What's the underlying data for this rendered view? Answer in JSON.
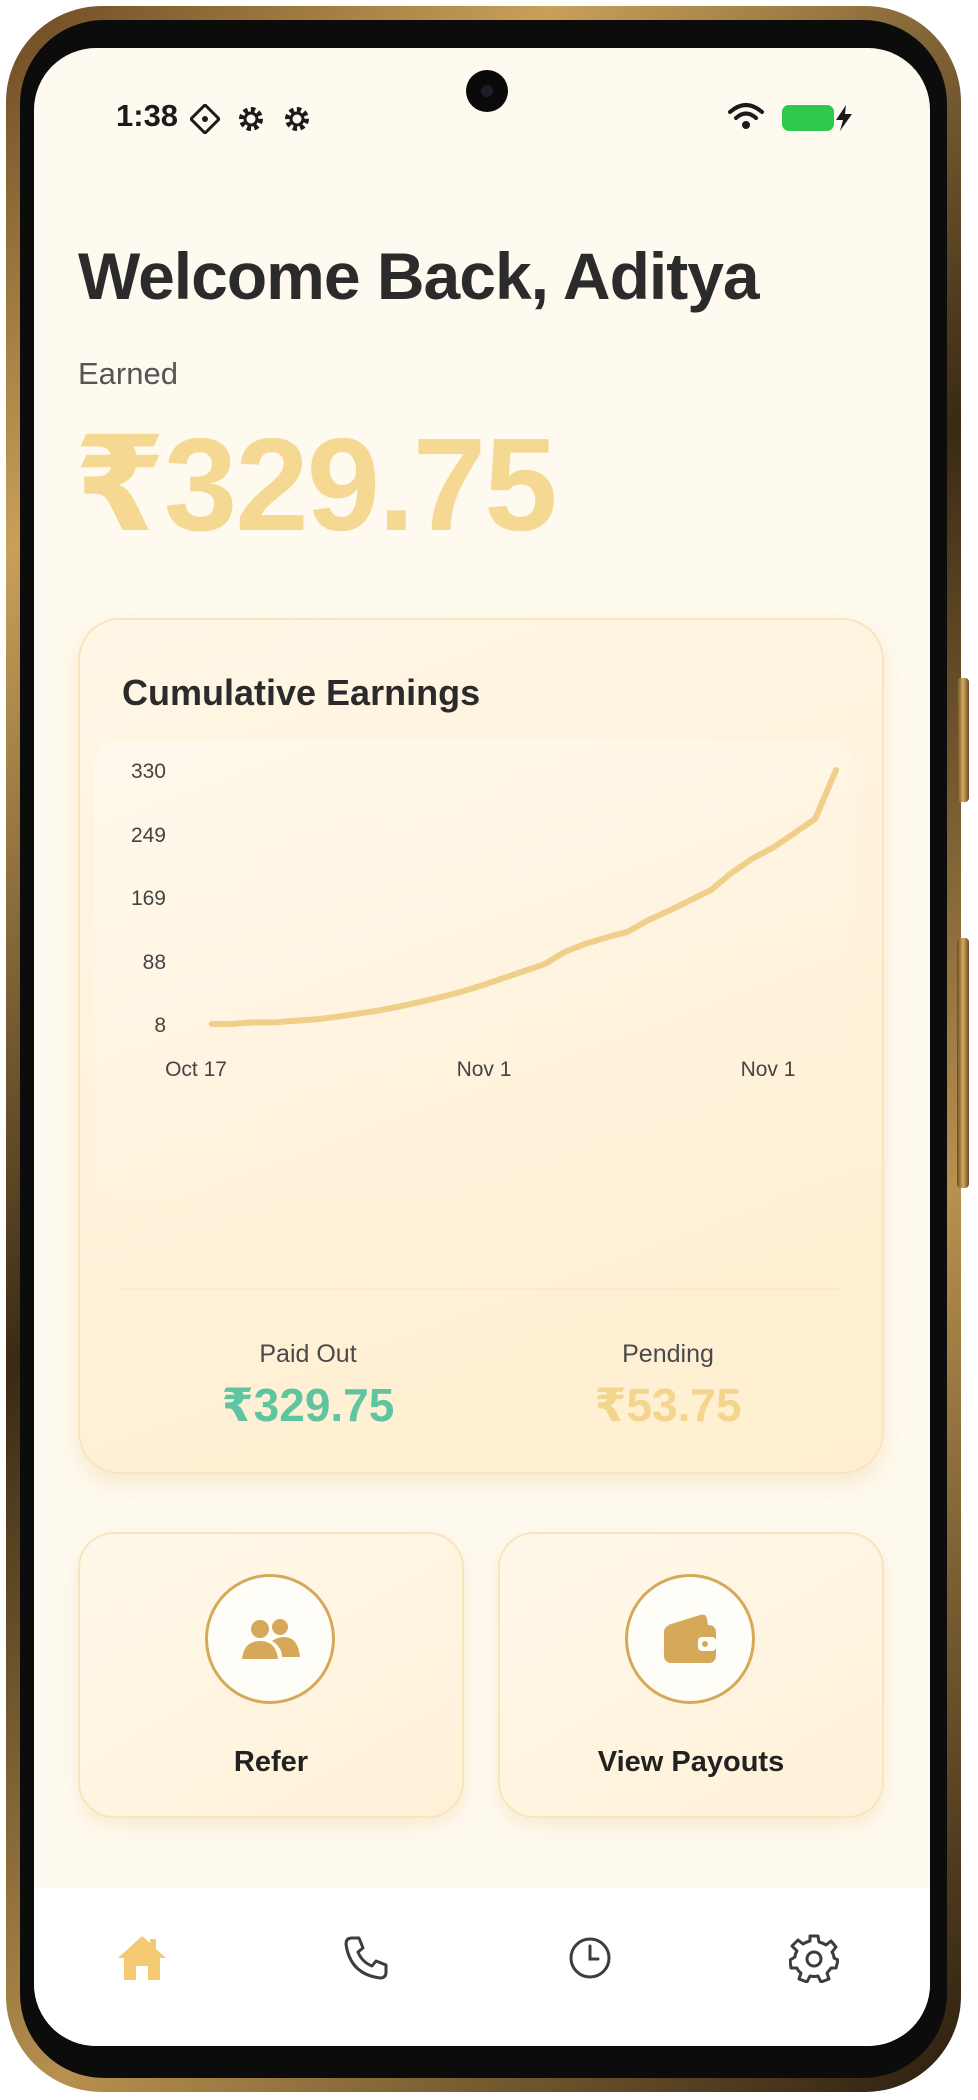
{
  "status_bar": {
    "time": "1:38",
    "icons": [
      "data-saver-icon",
      "gear-icon",
      "gear-icon",
      "wifi-icon",
      "battery-icon",
      "charging-bolt-icon"
    ]
  },
  "welcome": {
    "title": "Welcome Back, Aditya"
  },
  "earnings": {
    "label": "Earned",
    "amount": "₹329.75"
  },
  "cumulative_card": {
    "title": "Cumulative Earnings",
    "paid_out_label": "Paid Out",
    "paid_out_value": "₹329.75",
    "pending_label": "Pending",
    "pending_value": "₹53.75"
  },
  "chart_data": {
    "type": "line",
    "title": "Cumulative Earnings",
    "y_ticks": [
      "330",
      "249",
      "169",
      "88",
      "8"
    ],
    "x_ticks": [
      "Oct 17",
      "Nov 1",
      "Nov 1"
    ],
    "ylim": [
      8,
      330
    ],
    "grid": false,
    "series": [
      {
        "values": [
          8,
          8,
          10,
          10,
          12,
          14,
          17,
          21,
          25,
          30,
          36,
          42,
          49,
          57,
          66,
          75,
          84,
          100,
          110,
          118,
          125,
          140,
          152,
          165,
          178,
          200,
          218,
          232,
          250,
          268,
          330
        ]
      }
    ]
  },
  "actions": {
    "refer_label": "Refer",
    "view_payouts_label": "View Payouts"
  },
  "bottom_nav": {
    "items": [
      "home-icon",
      "phone-icon",
      "clock-icon",
      "settings-icon"
    ],
    "active": "home-icon"
  },
  "colors": {
    "background": "#fffaf0",
    "accent_gold": "#f5d892",
    "icon_gold": "#d6a95a",
    "paid_green": "#5fc4a0",
    "pending_gold": "#f3d58e",
    "line_gold": "#f0cf8a"
  }
}
